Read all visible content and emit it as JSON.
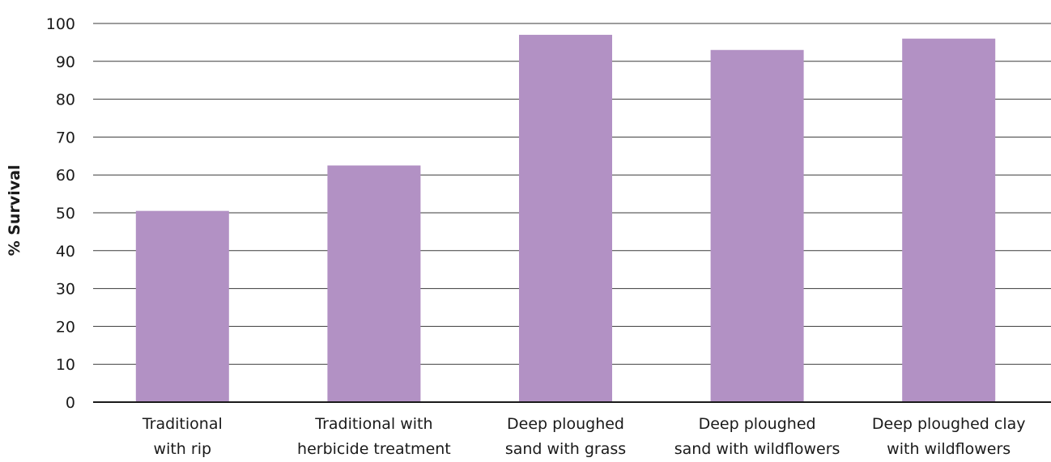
{
  "chart_data": {
    "type": "bar",
    "title": "",
    "xlabel": "",
    "ylabel": "% Survival",
    "ylim": [
      0,
      100
    ],
    "yticks": [
      0,
      10,
      20,
      30,
      40,
      50,
      60,
      70,
      80,
      90,
      100
    ],
    "grid": true,
    "categories": [
      [
        "Traditional",
        "with rip"
      ],
      [
        "Traditional with",
        "herbicide treatment"
      ],
      [
        "Deep ploughed",
        "sand with grass"
      ],
      [
        "Deep ploughed",
        "sand with wildflowers"
      ],
      [
        "Deep ploughed clay",
        "with wildflowers"
      ]
    ],
    "values": [
      50.5,
      62.5,
      97,
      93,
      96
    ],
    "bar_color": "#b291c4"
  }
}
